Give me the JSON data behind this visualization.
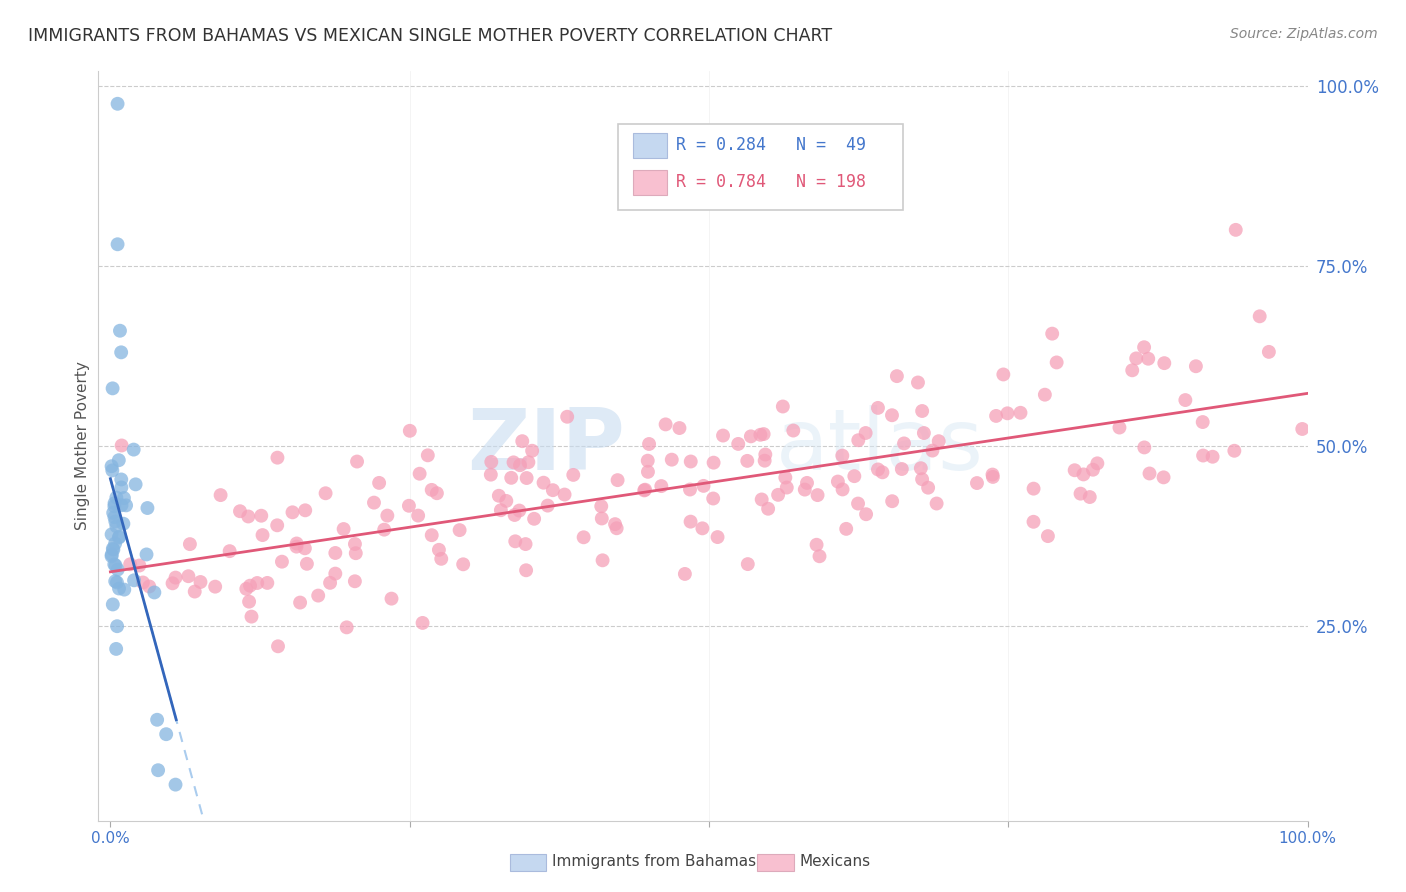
{
  "title": "IMMIGRANTS FROM BAHAMAS VS MEXICAN SINGLE MOTHER POVERTY CORRELATION CHART",
  "source": "Source: ZipAtlas.com",
  "ylabel": "Single Mother Poverty",
  "r_bahamas": 0.284,
  "n_bahamas": 49,
  "r_mexicans": 0.784,
  "n_mexicans": 198,
  "blue_color": "#85B5E0",
  "blue_line_color": "#3366BB",
  "blue_dashed_color": "#AACCEE",
  "pink_color": "#F5A0B8",
  "pink_line_color": "#E05878",
  "legend_box_color_blue": "#C5D8F0",
  "legend_box_color_pink": "#F8C0D0",
  "legend_label_blue": "Immigrants from Bahamas",
  "legend_label_pink": "Mexicans",
  "watermark_zip": "ZIP",
  "watermark_atlas": "atlas",
  "background_color": "#FFFFFF",
  "grid_color": "#CCCCCC",
  "axis_label_color": "#4477CC",
  "title_color": "#333333",
  "seed": 7
}
